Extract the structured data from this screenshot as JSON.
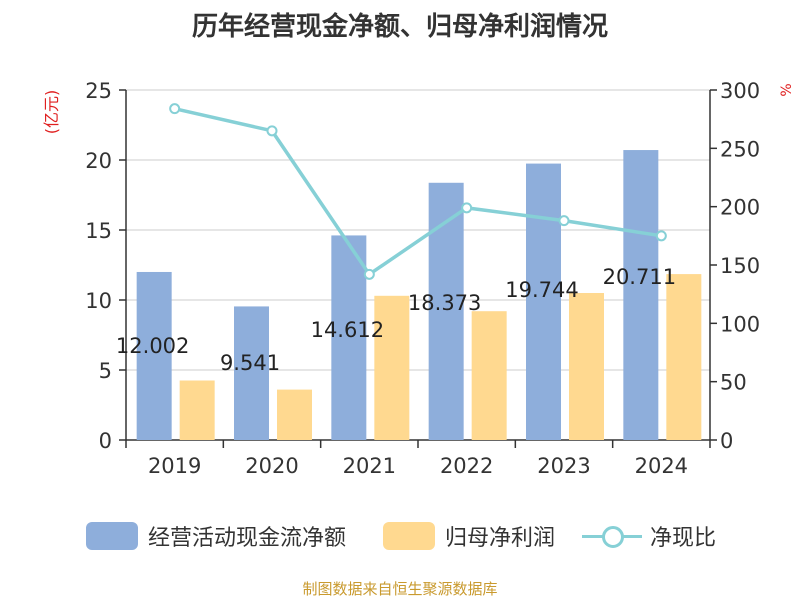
{
  "title": "历年经营现金净额、归母净利润情况",
  "chart_data": {
    "type": "bar",
    "title": "历年经营现金净额、归母净利润情况",
    "categories": [
      "2019",
      "2020",
      "2021",
      "2022",
      "2023",
      "2024"
    ],
    "series": [
      {
        "name": "经营活动现金流净额",
        "type": "bar",
        "axis": "left",
        "color": "#8eaedb",
        "values": [
          12.002,
          9.541,
          14.612,
          18.373,
          19.744,
          20.711
        ]
      },
      {
        "name": "归母净利润",
        "type": "bar",
        "axis": "left",
        "color": "#ffd990",
        "values": [
          4.25,
          3.6,
          10.3,
          9.2,
          10.5,
          11.85
        ]
      },
      {
        "name": "净现比",
        "type": "line",
        "axis": "right",
        "color": "#86d0d6",
        "values": [
          284,
          265,
          142,
          199,
          188,
          175
        ]
      }
    ],
    "data_labels": [
      "12.002",
      "9.541",
      "14.612",
      "18.373",
      "19.744",
      "20.711"
    ],
    "left_axis": {
      "label": "(亿元)",
      "min": 0,
      "max": 25,
      "ticks": [
        "0",
        "5",
        "10",
        "15",
        "20",
        "25"
      ]
    },
    "right_axis": {
      "label": "%",
      "min": 0,
      "max": 300,
      "ticks": [
        "0",
        "50",
        "100",
        "150",
        "200",
        "250",
        "300"
      ]
    },
    "grid": true,
    "legend_position": "bottom"
  },
  "legend": {
    "item1": "经营活动现金流净额",
    "item2": "归母净利润",
    "item3": "净现比"
  },
  "source": "制图数据来自恒生聚源数据库"
}
